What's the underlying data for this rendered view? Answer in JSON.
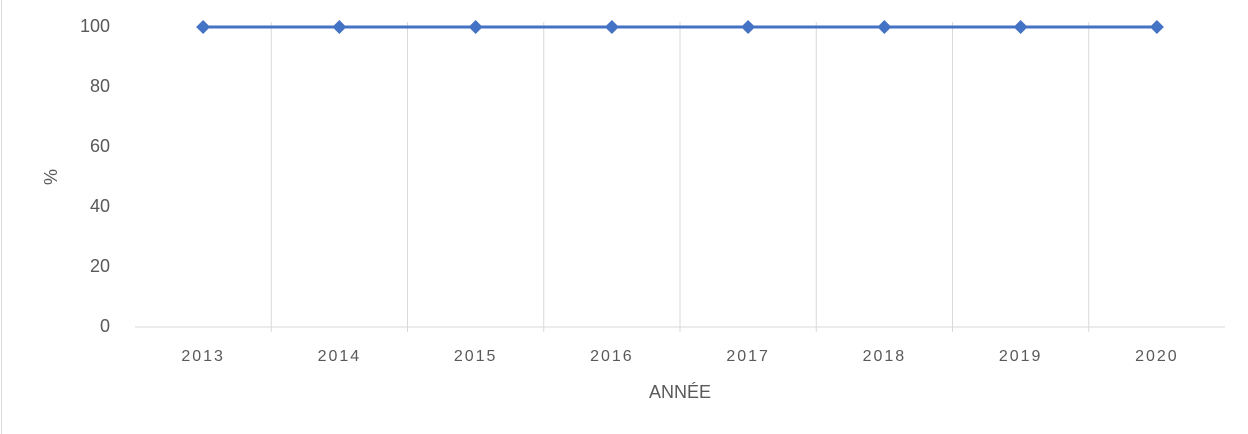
{
  "chart_data": {
    "type": "line",
    "y_label": "%",
    "x_label": "ANNÉE",
    "categories": [
      "2013",
      "2014",
      "2015",
      "2016",
      "2017",
      "2018",
      "2019",
      "2020"
    ],
    "series": [
      {
        "color": "#4472c4",
        "values": [
          100,
          100,
          100,
          100,
          100,
          100,
          100,
          100
        ]
      }
    ],
    "ylim": [
      0,
      100
    ],
    "yticks": [
      0,
      20,
      40,
      60,
      80,
      100
    ],
    "grid": false
  }
}
